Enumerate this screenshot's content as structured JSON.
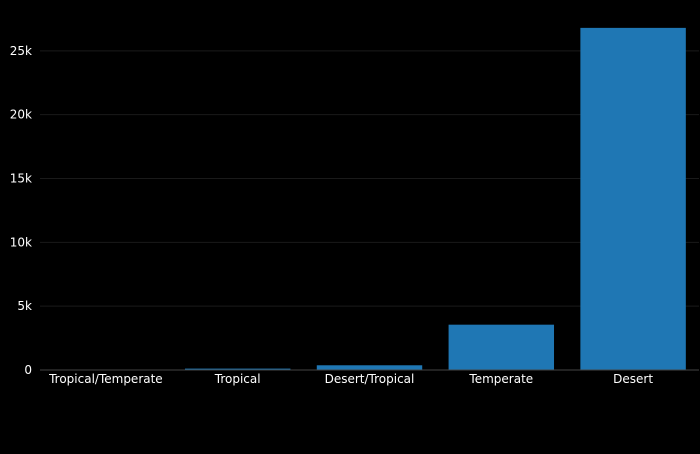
{
  "chart_data": {
    "type": "bar",
    "categories": [
      "Tropical/Temperate",
      "Tropical",
      "Desert/Tropical",
      "Temperate",
      "Desert"
    ],
    "values": [
      20,
      110,
      370,
      3550,
      26800
    ],
    "ylim": [
      0,
      28200
    ],
    "yticks": [
      0,
      5000,
      10000,
      15000,
      20000,
      25000
    ],
    "ytick_labels": [
      "0",
      "5k",
      "10k",
      "15k",
      "20k",
      "25k"
    ],
    "grid": true,
    "legend": "none",
    "colors": {
      "background": "#000000",
      "bar": "#1f77b4",
      "grid": "#1a1a1a",
      "axis_line": "#444444",
      "text": "#ffffff"
    }
  }
}
